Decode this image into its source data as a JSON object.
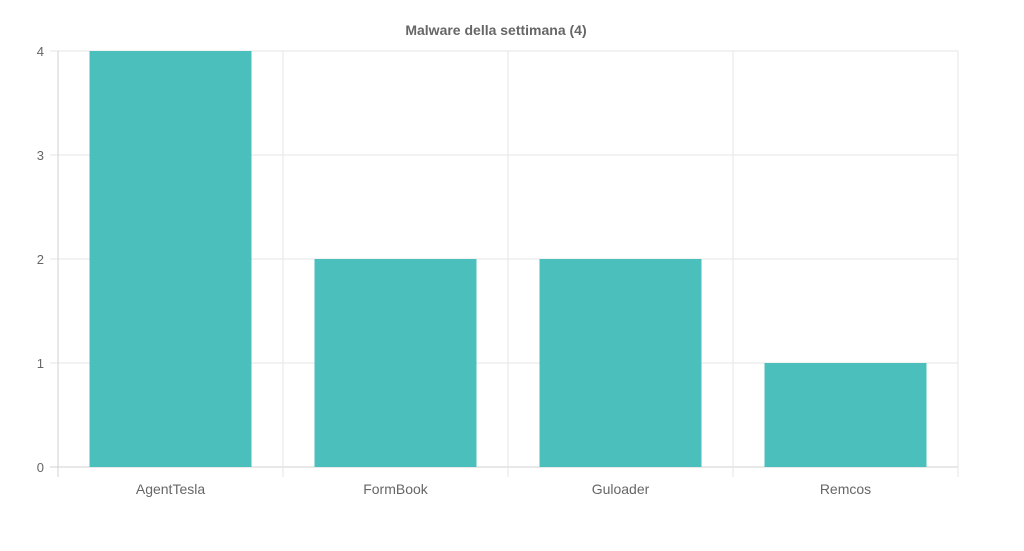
{
  "chart_data": {
    "type": "bar",
    "title": "Malware della settimana (4)",
    "categories": [
      "AgentTesla",
      "FormBook",
      "Guloader",
      "Remcos"
    ],
    "values": [
      4,
      2,
      2,
      1
    ],
    "xlabel": "",
    "ylabel": "",
    "ylim": [
      0,
      4
    ],
    "yticks": [
      "0",
      "1",
      "2",
      "3",
      "4"
    ],
    "grid": true,
    "legend": "none",
    "colors": {
      "bar": "#4bbfbc",
      "grid": "#e5e5e5",
      "text": "#666666"
    }
  }
}
